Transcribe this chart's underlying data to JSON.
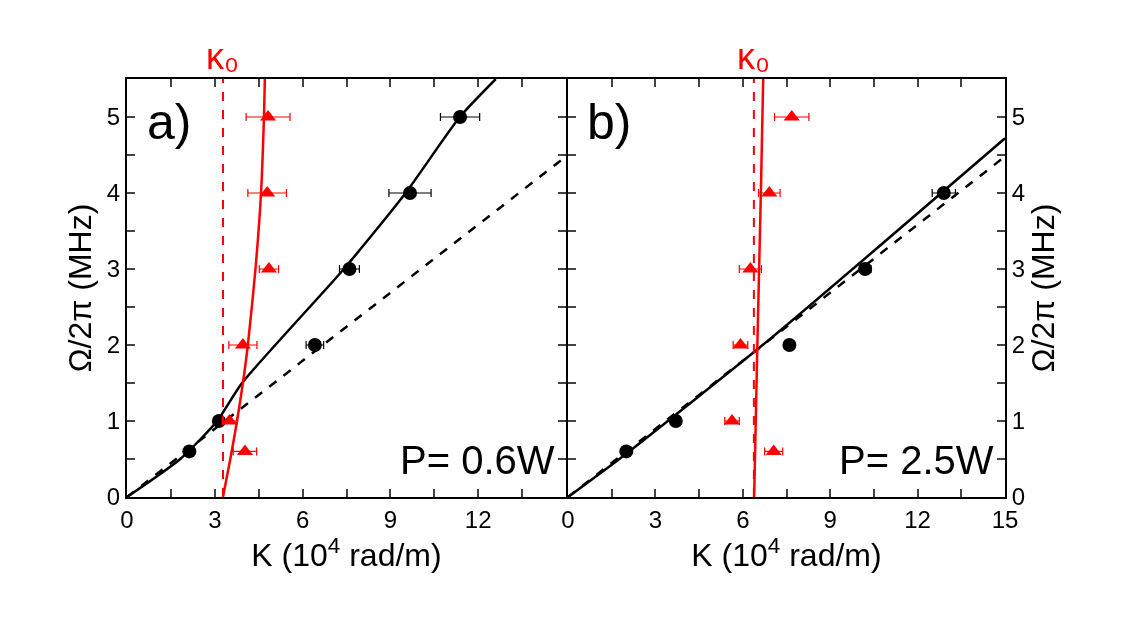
{
  "chart_data": [
    {
      "type": "scatter",
      "xlabel": "K (10$^{4}$ rad/m)",
      "ylabel": "Ω/2π (MHz)",
      "xlim": [
        0,
        15
      ],
      "ylim": [
        0,
        5.5
      ],
      "xticks": [
        0,
        {
          "value": 1.5,
          "label": null
        },
        3,
        {
          "value": 4.5,
          "label": null
        },
        6,
        {
          "value": 7.5,
          "label": null
        },
        9,
        {
          "value": 10.5,
          "label": null
        },
        12,
        {
          "value": 13.5,
          "label": null
        },
        {
          "value": 15,
          "label": null
        }
      ],
      "yticks": [
        0,
        {
          "value": 0.5,
          "label": null
        },
        1,
        {
          "value": 1.5,
          "label": null
        },
        2,
        {
          "value": 2.5,
          "label": null
        },
        3,
        {
          "value": 3.5,
          "label": null
        },
        4,
        {
          "value": 4.5,
          "label": null
        },
        5
      ],
      "annotations": [
        "a)",
        "P= 0.6W"
      ],
      "ref_lines": [
        {
          "axis": "x",
          "value": 3.28,
          "label": "κ₀",
          "color": "#ff0000",
          "line_style": "dashed"
        }
      ],
      "series": [
        {
          "type": "line",
          "color": "#000000",
          "line_style": "solid",
          "marker": "none",
          "x": [
            0,
            1.82,
            3.08,
            3.93,
            7.41,
            9.52,
            11.37,
            12.6
          ],
          "values": [
            0,
            0.5,
            1,
            1.5,
            3,
            4,
            5,
            5.5
          ]
        },
        {
          "type": "line",
          "color": "#000000",
          "line_style": "dashed",
          "marker": "none",
          "x": [
            0,
            15
          ],
          "values": [
            0,
            4.48
          ]
        },
        {
          "type": "line",
          "color": "#ff0000",
          "line_style": "solid",
          "marker": "none",
          "x": [
            3.28,
            3.53,
            3.76,
            3.96,
            4.13,
            4.39,
            4.58,
            4.68,
            4.71
          ],
          "values": [
            0,
            0.5,
            1,
            1.5,
            2,
            3,
            4,
            5,
            5.5
          ]
        },
        {
          "color": "#000000",
          "marker": "circle",
          "x": [
            2.13,
            3.14,
            6.42,
            7.6,
            9.67,
            11.38
          ],
          "values": [
            0.6,
            1,
            2,
            3,
            4,
            5
          ],
          "xerrors": [
            null,
            null,
            0.3,
            0.34,
            0.72,
            0.67
          ]
        },
        {
          "color": "#ff0000",
          "marker": "triangle",
          "x": [
            4.03,
            3.5,
            3.96,
            4.85,
            4.79,
            4.82
          ],
          "values": [
            0.6,
            1,
            2,
            3,
            4,
            5
          ],
          "xerrors": [
            0.4,
            0.25,
            0.48,
            0.33,
            0.66,
            0.75
          ]
        }
      ]
    },
    {
      "type": "scatter",
      "xlabel": "K (10$^{4}$ rad/m)",
      "ylabel": "Ω/2π (MHz)",
      "xlim": [
        0,
        15
      ],
      "ylim": [
        0,
        5.5
      ],
      "xticks": [
        0,
        {
          "value": 1.5,
          "label": null
        },
        3,
        {
          "value": 4.5,
          "label": null
        },
        6,
        {
          "value": 7.5,
          "label": null
        },
        9,
        {
          "value": 10.5,
          "label": null
        },
        12,
        {
          "value": 13.5,
          "label": null
        },
        15
      ],
      "yticks": [
        0,
        {
          "value": 0.5,
          "label": null
        },
        1,
        {
          "value": 1.5,
          "label": null
        },
        2,
        {
          "value": 2.5,
          "label": null
        },
        3,
        {
          "value": 3.5,
          "label": null
        },
        4,
        {
          "value": 4.5,
          "label": null
        },
        5
      ],
      "annotations": [
        "b)",
        "P= 2.5W"
      ],
      "ref_lines": [
        {
          "axis": "x",
          "value": 6.38,
          "label": "κ₀",
          "color": "#ff0000",
          "line_style": "dashed"
        }
      ],
      "series": [
        {
          "type": "line",
          "color": "#000000",
          "line_style": "solid",
          "marker": "none",
          "x": [
            0,
            2,
            7,
            15
          ],
          "values": [
            0,
            0.57,
            2.1,
            4.72
          ]
        },
        {
          "type": "line",
          "color": "#000000",
          "line_style": "dashed",
          "marker": "none",
          "x": [
            0,
            15
          ],
          "values": [
            0,
            4.48
          ]
        },
        {
          "type": "line",
          "color": "#ff0000",
          "line_style": "solid",
          "marker": "none",
          "x": [
            6.39,
            6.5,
            6.62,
            6.7
          ],
          "values": [
            0,
            2,
            4,
            5.5
          ]
        },
        {
          "color": "#000000",
          "marker": "circle",
          "x": [
            2.0,
            3.7,
            7.6,
            10.2,
            12.9
          ],
          "values": [
            0.6,
            1,
            2,
            3,
            4
          ],
          "xerrors": [
            null,
            null,
            null,
            0.2,
            0.4
          ]
        },
        {
          "color": "#ff0000",
          "marker": "triangle",
          "x": [
            7.06,
            5.63,
            5.92,
            6.26,
            6.91,
            7.68
          ],
          "values": [
            0.6,
            1,
            2,
            3,
            4,
            5
          ],
          "xerrors": [
            0.31,
            0.25,
            0.25,
            0.38,
            0.37,
            0.59
          ]
        }
      ]
    }
  ]
}
